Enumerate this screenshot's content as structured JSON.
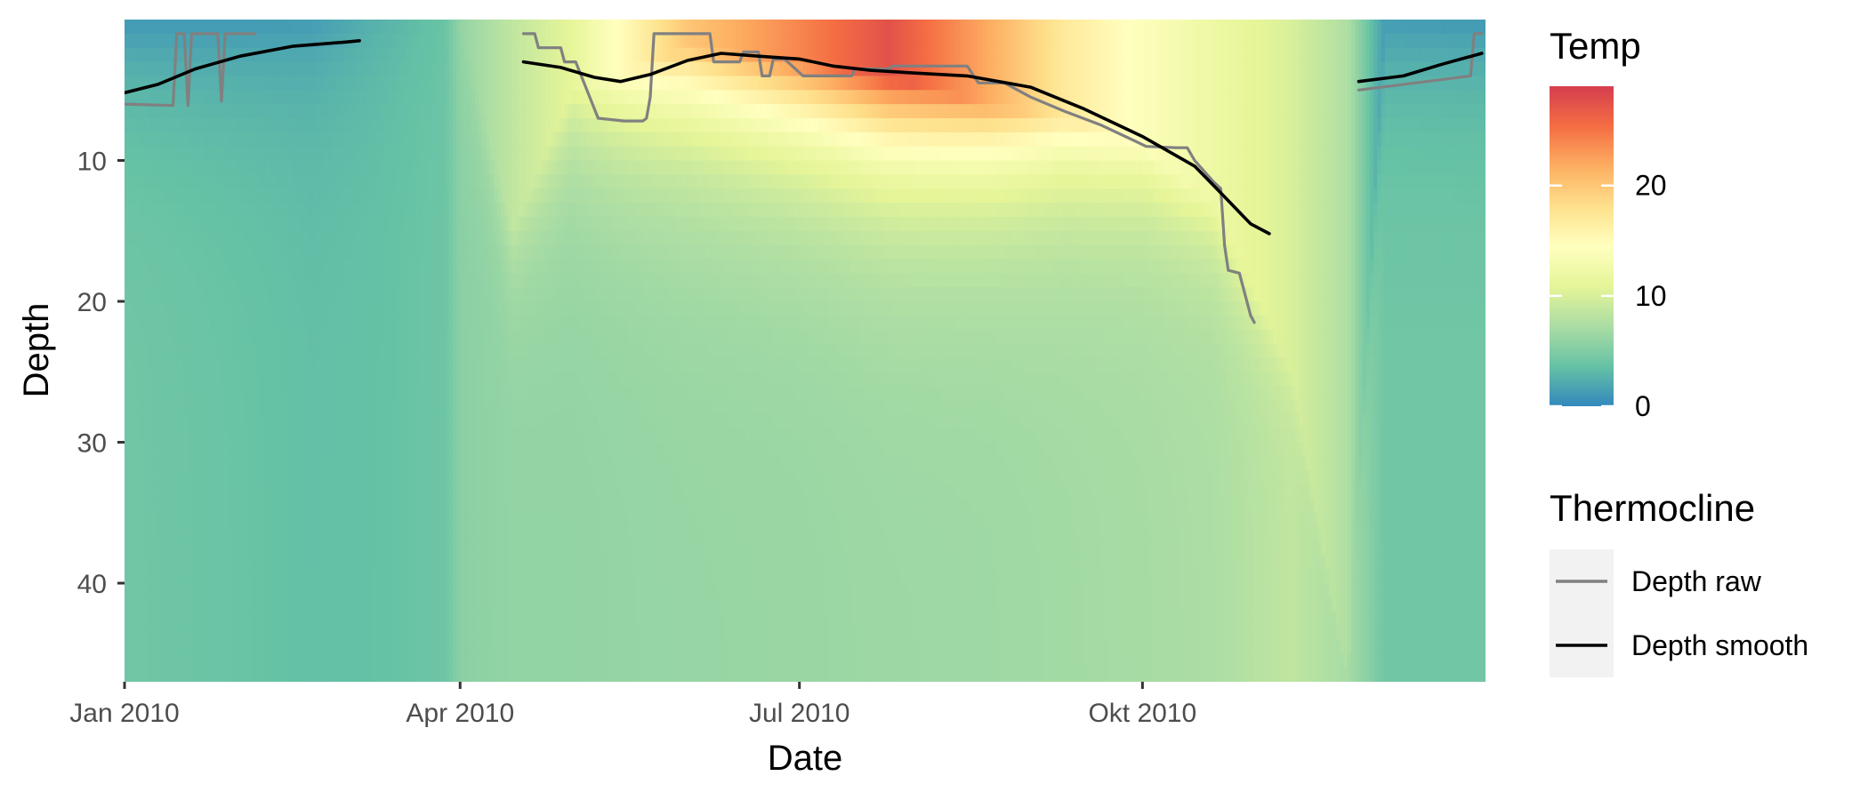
{
  "chart_data": {
    "type": "heatmap",
    "title": "",
    "xlabel": "Date",
    "ylabel": "Depth",
    "x_range": [
      "2010-01-01",
      "2011-01-01"
    ],
    "y_range": [
      0,
      47
    ],
    "y_reversed": true,
    "x_ticks": [
      {
        "value": "2010-01-01",
        "label": "Jan 2010"
      },
      {
        "value": "2010-04-01",
        "label": "Apr 2010"
      },
      {
        "value": "2010-07-01",
        "label": "Jul 2010"
      },
      {
        "value": "2010-10-01",
        "label": "Okt 2010"
      }
    ],
    "y_ticks": [
      {
        "value": 10,
        "label": "10"
      },
      {
        "value": 20,
        "label": "20"
      },
      {
        "value": 30,
        "label": "30"
      },
      {
        "value": 40,
        "label": "40"
      }
    ],
    "fill_legend": {
      "title": "Temp",
      "min": 0,
      "max": 29,
      "breaks": [
        {
          "value": 0,
          "label": "0"
        },
        {
          "value": 10,
          "label": "10"
        },
        {
          "value": 20,
          "label": "20"
        }
      ],
      "palette": [
        "#3288bd",
        "#66c2a5",
        "#abdda4",
        "#e6f598",
        "#ffffbf",
        "#fee08b",
        "#fdae61",
        "#f46d43",
        "#d53e4f"
      ]
    },
    "temperature_profiles": [
      {
        "date": "2010-01-01",
        "surface": 1.0,
        "bottom": 4.2,
        "mixed_depth": 0
      },
      {
        "date": "2010-02-01",
        "surface": 1.0,
        "bottom": 3.8,
        "mixed_depth": 0
      },
      {
        "date": "2010-02-20",
        "surface": 1.2,
        "bottom": 3.5,
        "mixed_depth": 0
      },
      {
        "date": "2010-03-10",
        "surface": 2.6,
        "bottom": 3.6,
        "mixed_depth": 0
      },
      {
        "date": "2010-03-28",
        "surface": 3.8,
        "bottom": 4.0,
        "mixed_depth": 0
      },
      {
        "date": "2010-04-01",
        "surface": 6.0,
        "bottom": 5.5,
        "mixed_depth": 0
      },
      {
        "date": "2010-04-15",
        "surface": 8.5,
        "bottom": 6.0,
        "mixed_depth": 15
      },
      {
        "date": "2010-05-01",
        "surface": 11.0,
        "bottom": 6.0,
        "mixed_depth": 5
      },
      {
        "date": "2010-06-01",
        "surface": 20.0,
        "bottom": 6.2,
        "mixed_depth": 2
      },
      {
        "date": "2010-07-01",
        "surface": 24.0,
        "bottom": 6.3,
        "mixed_depth": 3
      },
      {
        "date": "2010-07-25",
        "surface": 27.5,
        "bottom": 6.5,
        "mixed_depth": 4
      },
      {
        "date": "2010-08-20",
        "surface": 22.0,
        "bottom": 6.6,
        "mixed_depth": 6
      },
      {
        "date": "2010-09-10",
        "surface": 17.0,
        "bottom": 6.8,
        "mixed_depth": 7
      },
      {
        "date": "2010-10-01",
        "surface": 14.0,
        "bottom": 7.0,
        "mixed_depth": 9
      },
      {
        "date": "2010-10-20",
        "surface": 12.0,
        "bottom": 7.3,
        "mixed_depth": 13
      },
      {
        "date": "2010-11-10",
        "surface": 10.0,
        "bottom": 8.5,
        "mixed_depth": 25
      },
      {
        "date": "2010-11-25",
        "surface": 7.5,
        "bottom": 7.0,
        "mixed_depth": 47
      },
      {
        "date": "2010-12-05",
        "surface": 1.2,
        "bottom": 4.2,
        "mixed_depth": 0
      },
      {
        "date": "2011-01-01",
        "surface": 1.0,
        "bottom": 4.2,
        "mixed_depth": 0
      }
    ],
    "series": [
      {
        "name": "Depth raw",
        "color": "#808080",
        "segments": [
          [
            {
              "x": "2010-01-01",
              "y": 6.0
            },
            {
              "x": "2010-01-14",
              "y": 6.1
            },
            {
              "x": "2010-01-15",
              "y": 1.0
            },
            {
              "x": "2010-01-17",
              "y": 1.0
            },
            {
              "x": "2010-01-18",
              "y": 6.1
            },
            {
              "x": "2010-01-19",
              "y": 1.0
            },
            {
              "x": "2010-01-26",
              "y": 1.0
            },
            {
              "x": "2010-01-27",
              "y": 5.8
            },
            {
              "x": "2010-01-28",
              "y": 1.0
            },
            {
              "x": "2010-02-05",
              "y": 1.0
            }
          ],
          [
            {
              "x": "2010-04-18",
              "y": 1.0
            },
            {
              "x": "2010-04-21",
              "y": 1.0
            },
            {
              "x": "2010-04-22",
              "y": 2.0
            },
            {
              "x": "2010-04-28",
              "y": 2.0
            },
            {
              "x": "2010-04-29",
              "y": 3.0
            },
            {
              "x": "2010-05-02",
              "y": 3.0
            },
            {
              "x": "2010-05-05",
              "y": 5.0
            },
            {
              "x": "2010-05-08",
              "y": 7.0
            },
            {
              "x": "2010-05-15",
              "y": 7.2
            },
            {
              "x": "2010-05-20",
              "y": 7.2
            },
            {
              "x": "2010-05-21",
              "y": 7.0
            },
            {
              "x": "2010-05-22",
              "y": 5.5
            },
            {
              "x": "2010-05-23",
              "y": 1.0
            },
            {
              "x": "2010-06-07",
              "y": 1.0
            },
            {
              "x": "2010-06-08",
              "y": 3.0
            },
            {
              "x": "2010-06-15",
              "y": 3.0
            },
            {
              "x": "2010-06-16",
              "y": 2.3
            },
            {
              "x": "2010-06-20",
              "y": 2.3
            },
            {
              "x": "2010-06-21",
              "y": 4.0
            },
            {
              "x": "2010-06-23",
              "y": 4.0
            },
            {
              "x": "2010-06-24",
              "y": 2.8
            },
            {
              "x": "2010-06-27",
              "y": 2.8
            },
            {
              "x": "2010-07-02",
              "y": 4.0
            },
            {
              "x": "2010-07-15",
              "y": 4.0
            },
            {
              "x": "2010-07-16",
              "y": 3.5
            },
            {
              "x": "2010-07-25",
              "y": 3.5
            },
            {
              "x": "2010-07-26",
              "y": 3.3
            },
            {
              "x": "2010-08-15",
              "y": 3.3
            },
            {
              "x": "2010-08-18",
              "y": 4.5
            },
            {
              "x": "2010-08-25",
              "y": 4.5
            },
            {
              "x": "2010-09-01",
              "y": 5.5
            },
            {
              "x": "2010-09-10",
              "y": 6.5
            },
            {
              "x": "2010-09-20",
              "y": 7.5
            },
            {
              "x": "2010-09-28",
              "y": 8.5
            },
            {
              "x": "2010-10-02",
              "y": 9.0
            },
            {
              "x": "2010-10-10",
              "y": 9.1
            },
            {
              "x": "2010-10-13",
              "y": 9.1
            },
            {
              "x": "2010-10-15",
              "y": 10.0
            },
            {
              "x": "2010-10-20",
              "y": 11.5
            },
            {
              "x": "2010-10-22",
              "y": 12.0
            },
            {
              "x": "2010-10-23",
              "y": 16.0
            },
            {
              "x": "2010-10-24",
              "y": 17.8
            },
            {
              "x": "2010-10-27",
              "y": 18.0
            },
            {
              "x": "2010-10-30",
              "y": 21.0
            },
            {
              "x": "2010-10-31",
              "y": 21.5
            }
          ],
          [
            {
              "x": "2010-11-28",
              "y": 5.0
            },
            {
              "x": "2010-12-28",
              "y": 4.0
            },
            {
              "x": "2010-12-29",
              "y": 1.0
            },
            {
              "x": "2010-12-31",
              "y": 1.0
            }
          ]
        ]
      },
      {
        "name": "Depth smooth",
        "color": "#000000",
        "segments": [
          [
            {
              "x": "2010-01-01",
              "y": 5.2
            },
            {
              "x": "2010-01-10",
              "y": 4.6
            },
            {
              "x": "2010-01-20",
              "y": 3.5
            },
            {
              "x": "2010-02-01",
              "y": 2.6
            },
            {
              "x": "2010-02-15",
              "y": 1.9
            },
            {
              "x": "2010-03-01",
              "y": 1.6
            },
            {
              "x": "2010-03-05",
              "y": 1.5
            }
          ],
          [
            {
              "x": "2010-04-18",
              "y": 3.0
            },
            {
              "x": "2010-04-28",
              "y": 3.4
            },
            {
              "x": "2010-05-07",
              "y": 4.1
            },
            {
              "x": "2010-05-14",
              "y": 4.4
            },
            {
              "x": "2010-05-22",
              "y": 3.9
            },
            {
              "x": "2010-06-01",
              "y": 2.9
            },
            {
              "x": "2010-06-10",
              "y": 2.4
            },
            {
              "x": "2010-06-20",
              "y": 2.6
            },
            {
              "x": "2010-07-01",
              "y": 2.8
            },
            {
              "x": "2010-07-10",
              "y": 3.3
            },
            {
              "x": "2010-07-20",
              "y": 3.6
            },
            {
              "x": "2010-08-01",
              "y": 3.8
            },
            {
              "x": "2010-08-15",
              "y": 4.0
            },
            {
              "x": "2010-09-01",
              "y": 4.8
            },
            {
              "x": "2010-09-15",
              "y": 6.3
            },
            {
              "x": "2010-10-01",
              "y": 8.3
            },
            {
              "x": "2010-10-15",
              "y": 10.4
            },
            {
              "x": "2010-10-22",
              "y": 12.3
            },
            {
              "x": "2010-10-30",
              "y": 14.5
            },
            {
              "x": "2010-11-04",
              "y": 15.2
            }
          ],
          [
            {
              "x": "2010-11-28",
              "y": 4.4
            },
            {
              "x": "2010-12-10",
              "y": 4.0
            },
            {
              "x": "2010-12-20",
              "y": 3.2
            },
            {
              "x": "2010-12-31",
              "y": 2.4
            }
          ]
        ]
      }
    ],
    "line_legend": {
      "title": "Thermocline",
      "entries": [
        {
          "label": "Depth raw",
          "color": "#808080"
        },
        {
          "label": "Depth smooth",
          "color": "#000000"
        }
      ]
    },
    "grid": false,
    "legend_position": "right"
  }
}
